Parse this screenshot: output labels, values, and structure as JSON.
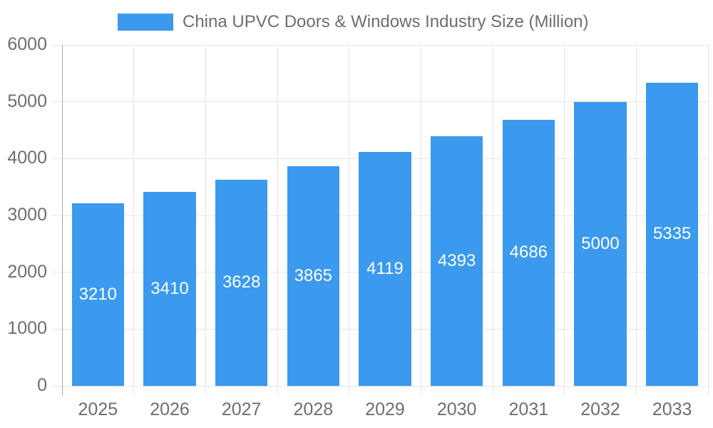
{
  "chart_data": {
    "type": "bar",
    "title": "China UPVC Doors & Windows Industry Size (Million)",
    "legend": {
      "position": "top",
      "entries": [
        "China UPVC Doors & Windows Industry Size (Million)"
      ]
    },
    "categories": [
      "2025",
      "2026",
      "2027",
      "2028",
      "2029",
      "2030",
      "2031",
      "2032",
      "2033"
    ],
    "values": [
      3210,
      3410,
      3628,
      3865,
      4119,
      4393,
      4686,
      5000,
      5335
    ],
    "series": [
      {
        "name": "China UPVC Doors & Windows Industry Size (Million)",
        "values": [
          3210,
          3410,
          3628,
          3865,
          4119,
          4393,
          4686,
          5000,
          5335
        ]
      }
    ],
    "xlabel": "",
    "ylabel": "",
    "ylim": [
      0,
      6000
    ],
    "y_ticks": [
      0,
      1000,
      2000,
      3000,
      4000,
      5000,
      6000
    ],
    "grid": true,
    "value_labels_inside_bars": true,
    "colors": {
      "bar": "#3b99ee",
      "bar_label": "#ffffff",
      "text": "#6e6e6e",
      "gridline": "#e6e6e6",
      "axis_line": "#a6a6a6",
      "background": "#ffffff"
    }
  }
}
